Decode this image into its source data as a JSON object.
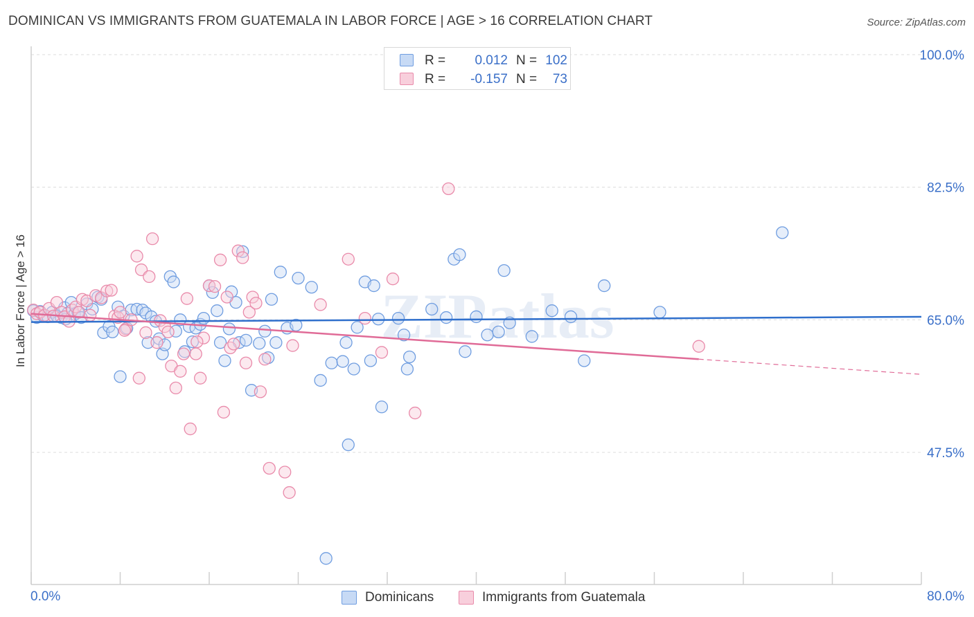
{
  "title": "DOMINICAN VS IMMIGRANTS FROM GUATEMALA IN LABOR FORCE | AGE > 16 CORRELATION CHART",
  "source": "Source: ZipAtlas.com",
  "watermark": "ZIPatlas",
  "legend": {
    "rows": [
      {
        "r_label": "R =",
        "r_value": "0.012",
        "n_label": "N =",
        "n_value": "102",
        "color": "#a9c6ef"
      },
      {
        "r_label": "R =",
        "r_value": "-0.157",
        "n_label": "N =",
        "n_value": "73",
        "color": "#f4b3c8"
      }
    ]
  },
  "bottom_legend": [
    {
      "label": "Dominicans",
      "color": "#a9c6ef"
    },
    {
      "label": "Immigrants from Guatemala",
      "color": "#f4b3c8"
    }
  ],
  "x_axis_labels": {
    "left": "0.0%",
    "right": "80.0%"
  },
  "colors": {
    "blue_stroke": "#6f9de0",
    "blue_fill": "#c7daf5",
    "blue_line": "#2f6fcc",
    "pink_stroke": "#e98aaa",
    "pink_fill": "#f8cfdc",
    "pink_line": "#e06b97",
    "tick_text": "#3a6fc8",
    "grid": "#dcdcdc"
  },
  "chart_data": {
    "type": "scatter",
    "title": "DOMINICAN VS IMMIGRANTS FROM GUATEMALA IN LABOR FORCE | AGE > 16 CORRELATION CHART",
    "xlabel": "",
    "ylabel": "In Labor Force | Age > 16",
    "xlim": [
      0,
      80
    ],
    "ylim": [
      33,
      102
    ],
    "y_ticks": [
      47.5,
      65.0,
      82.5,
      100.0
    ],
    "y_tick_labels": [
      "47.5%",
      "65.0%",
      "82.5%",
      "100.0%"
    ],
    "x_tick_labels_shown": [
      "0.0%",
      "80.0%"
    ],
    "grid": true,
    "legend_position": "top-center",
    "series": [
      {
        "name": "Dominicans",
        "color": "#6f9de0",
        "trend": {
          "x0": 0,
          "y0": 64.7,
          "x1": 80,
          "y1": 65.4
        },
        "points": [
          [
            0.2,
            66.2
          ],
          [
            0.5,
            65.3
          ],
          [
            0.8,
            66.1
          ],
          [
            1.1,
            65.5
          ],
          [
            1.5,
            65.4
          ],
          [
            1.9,
            66.0
          ],
          [
            2.3,
            65.5
          ],
          [
            2.7,
            65.3
          ],
          [
            3.0,
            66.6
          ],
          [
            3.3,
            65.9
          ],
          [
            3.6,
            67.3
          ],
          [
            3.9,
            65.7
          ],
          [
            4.2,
            66.0
          ],
          [
            4.5,
            65.3
          ],
          [
            5.0,
            67.1
          ],
          [
            5.5,
            66.4
          ],
          [
            6.0,
            68.0
          ],
          [
            6.3,
            67.7
          ],
          [
            6.5,
            63.3
          ],
          [
            7.0,
            64.1
          ],
          [
            7.3,
            63.4
          ],
          [
            7.8,
            66.7
          ],
          [
            8.0,
            57.5
          ],
          [
            8.3,
            65.5
          ],
          [
            8.6,
            63.9
          ],
          [
            9.0,
            66.3
          ],
          [
            9.5,
            66.4
          ],
          [
            10.0,
            66.3
          ],
          [
            10.3,
            65.9
          ],
          [
            10.5,
            62.0
          ],
          [
            10.8,
            65.4
          ],
          [
            11.2,
            64.8
          ],
          [
            11.5,
            62.5
          ],
          [
            11.8,
            60.5
          ],
          [
            12.0,
            61.7
          ],
          [
            12.5,
            70.7
          ],
          [
            12.8,
            70.0
          ],
          [
            13.0,
            63.5
          ],
          [
            13.4,
            65.0
          ],
          [
            13.8,
            60.8
          ],
          [
            14.2,
            64.1
          ],
          [
            14.5,
            62.1
          ],
          [
            14.8,
            63.9
          ],
          [
            15.2,
            64.4
          ],
          [
            15.5,
            65.2
          ],
          [
            16.0,
            69.5
          ],
          [
            16.3,
            68.6
          ],
          [
            16.7,
            66.2
          ],
          [
            17.0,
            62.0
          ],
          [
            17.4,
            59.6
          ],
          [
            17.8,
            63.8
          ],
          [
            18.0,
            68.7
          ],
          [
            18.4,
            67.3
          ],
          [
            18.7,
            62.0
          ],
          [
            19.0,
            74.0
          ],
          [
            19.3,
            62.3
          ],
          [
            19.8,
            55.7
          ],
          [
            20.5,
            61.9
          ],
          [
            21.0,
            63.5
          ],
          [
            21.3,
            60.0
          ],
          [
            21.6,
            67.7
          ],
          [
            22.0,
            62.0
          ],
          [
            22.4,
            71.3
          ],
          [
            23.0,
            63.9
          ],
          [
            24.0,
            70.5
          ],
          [
            25.2,
            69.3
          ],
          [
            26.0,
            57.0
          ],
          [
            26.5,
            33.5
          ],
          [
            27.0,
            59.3
          ],
          [
            28.0,
            59.5
          ],
          [
            28.3,
            62.0
          ],
          [
            28.5,
            48.5
          ],
          [
            29.0,
            58.5
          ],
          [
            29.3,
            64.0
          ],
          [
            30.0,
            70.0
          ],
          [
            30.5,
            59.6
          ],
          [
            30.8,
            69.5
          ],
          [
            31.2,
            65.1
          ],
          [
            31.5,
            53.5
          ],
          [
            33.0,
            65.2
          ],
          [
            33.5,
            63.0
          ],
          [
            33.8,
            58.5
          ],
          [
            34.0,
            60.1
          ],
          [
            36.0,
            66.4
          ],
          [
            37.3,
            65.3
          ],
          [
            38.0,
            73.0
          ],
          [
            38.5,
            73.6
          ],
          [
            39.0,
            60.8
          ],
          [
            40.0,
            65.4
          ],
          [
            41.0,
            63.0
          ],
          [
            42.0,
            63.4
          ],
          [
            42.5,
            71.5
          ],
          [
            43.0,
            64.6
          ],
          [
            45.0,
            62.8
          ],
          [
            46.8,
            66.2
          ],
          [
            48.5,
            65.4
          ],
          [
            49.7,
            59.6
          ],
          [
            51.5,
            69.5
          ],
          [
            56.5,
            66.0
          ],
          [
            67.5,
            76.5
          ],
          [
            23.8,
            64.3
          ],
          [
            3.1,
            65.1
          ]
        ]
      },
      {
        "name": "Immigrants from Guatemala",
        "color": "#e98aaa",
        "trend": {
          "x0": 0,
          "y0": 65.8,
          "x1": 60,
          "y1": 59.8,
          "dashed_to": {
            "x": 80,
            "y": 57.8
          }
        },
        "points": [
          [
            0.2,
            66.3
          ],
          [
            0.5,
            65.8
          ],
          [
            0.8,
            66.0
          ],
          [
            1.2,
            65.6
          ],
          [
            1.6,
            66.5
          ],
          [
            2.0,
            65.5
          ],
          [
            2.3,
            67.3
          ],
          [
            2.7,
            66.0
          ],
          [
            3.0,
            65.4
          ],
          [
            3.4,
            64.8
          ],
          [
            3.7,
            66.3
          ],
          [
            4.0,
            66.7
          ],
          [
            4.3,
            66.0
          ],
          [
            4.6,
            67.7
          ],
          [
            5.0,
            67.5
          ],
          [
            5.3,
            65.6
          ],
          [
            5.8,
            68.2
          ],
          [
            6.3,
            67.9
          ],
          [
            6.8,
            68.8
          ],
          [
            7.2,
            68.9
          ],
          [
            7.5,
            65.5
          ],
          [
            7.8,
            65.3
          ],
          [
            8.0,
            66.0
          ],
          [
            8.5,
            63.8
          ],
          [
            9.0,
            65.0
          ],
          [
            9.5,
            73.4
          ],
          [
            9.7,
            57.3
          ],
          [
            9.9,
            71.6
          ],
          [
            10.3,
            63.3
          ],
          [
            10.6,
            70.7
          ],
          [
            10.9,
            75.7
          ],
          [
            11.3,
            62.0
          ],
          [
            11.6,
            64.9
          ],
          [
            12.0,
            64.1
          ],
          [
            12.3,
            63.4
          ],
          [
            12.6,
            58.9
          ],
          [
            13.0,
            56.0
          ],
          [
            13.4,
            58.2
          ],
          [
            13.7,
            60.5
          ],
          [
            14.0,
            67.8
          ],
          [
            14.3,
            50.6
          ],
          [
            14.8,
            60.5
          ],
          [
            15.2,
            57.3
          ],
          [
            15.5,
            62.6
          ],
          [
            16.0,
            69.5
          ],
          [
            16.5,
            69.4
          ],
          [
            17.0,
            72.9
          ],
          [
            17.3,
            52.8
          ],
          [
            17.6,
            68.0
          ],
          [
            17.9,
            61.3
          ],
          [
            18.2,
            61.8
          ],
          [
            18.6,
            74.1
          ],
          [
            19.0,
            73.2
          ],
          [
            19.3,
            59.3
          ],
          [
            19.6,
            66.0
          ],
          [
            19.9,
            68.0
          ],
          [
            20.2,
            67.2
          ],
          [
            20.6,
            55.5
          ],
          [
            21.0,
            59.8
          ],
          [
            21.4,
            45.4
          ],
          [
            22.8,
            44.9
          ],
          [
            23.2,
            42.2
          ],
          [
            23.5,
            61.6
          ],
          [
            26.0,
            67.0
          ],
          [
            28.5,
            73.0
          ],
          [
            30.0,
            65.2
          ],
          [
            31.5,
            60.7
          ],
          [
            32.5,
            70.4
          ],
          [
            34.5,
            52.7
          ],
          [
            37.5,
            82.3
          ],
          [
            60.0,
            61.5
          ],
          [
            8.4,
            63.6
          ],
          [
            14.9,
            62.1
          ]
        ]
      }
    ]
  }
}
